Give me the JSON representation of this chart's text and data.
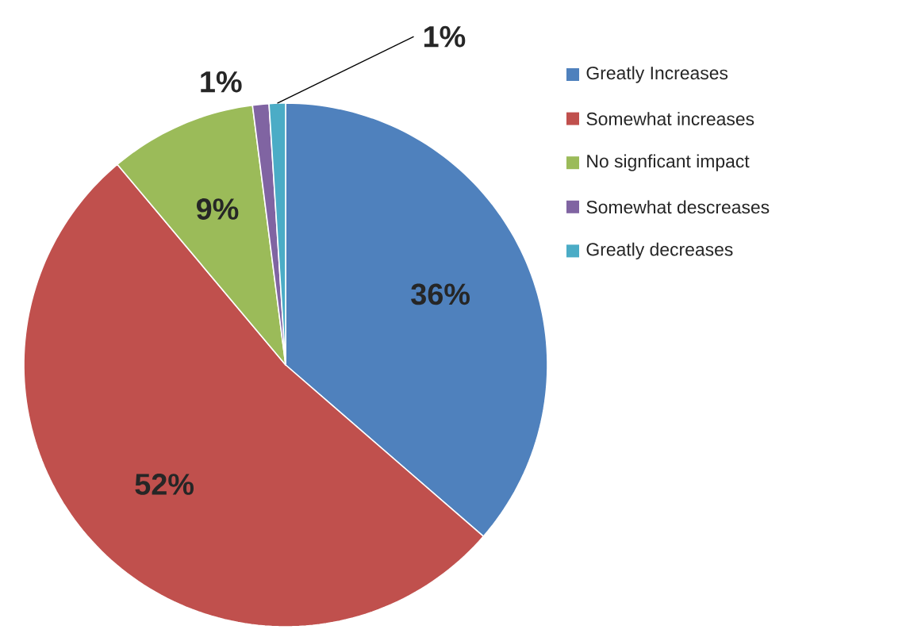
{
  "chart_data": {
    "type": "pie",
    "categories": [
      "Greatly Increases",
      "Somewhat increases",
      "No signficant impact",
      "Somewhat descreases",
      "Greatly decreases"
    ],
    "values": [
      36,
      52,
      9,
      1,
      1
    ],
    "value_labels": [
      "36%",
      "52%",
      "9%",
      "1%",
      "1%"
    ],
    "colors": [
      "#4f81bd",
      "#c0504d",
      "#9bbb59",
      "#8064a2",
      "#4bacc6"
    ],
    "legend": "right"
  }
}
